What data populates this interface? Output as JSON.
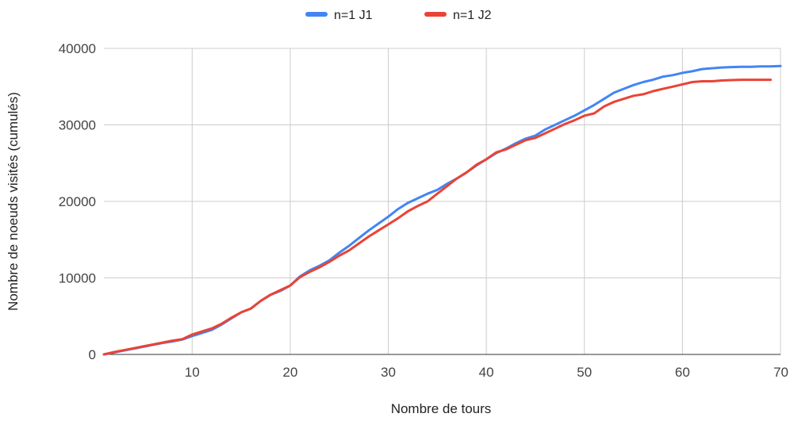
{
  "chart_data": {
    "type": "line",
    "title": "",
    "xlabel": "Nombre de tours",
    "ylabel": "Nombre de noeuds visités (cumulés)",
    "xlim": [
      1,
      70
    ],
    "ylim": [
      0,
      40000
    ],
    "x_ticks": [
      10,
      20,
      30,
      40,
      50,
      60,
      70
    ],
    "y_ticks": [
      0,
      10000,
      20000,
      30000,
      40000
    ],
    "x_tick_labels": [
      "10",
      "20",
      "30",
      "40",
      "50",
      "60",
      "70"
    ],
    "y_tick_labels": [
      "0",
      "10000",
      "20000",
      "30000",
      "40000"
    ],
    "grid": true,
    "legend_position": "top",
    "series": [
      {
        "name": "n=1 J1",
        "color": "#4285f4",
        "x": [
          1,
          2,
          3,
          4,
          5,
          6,
          7,
          8,
          9,
          10,
          11,
          12,
          13,
          14,
          15,
          16,
          17,
          18,
          19,
          20,
          21,
          22,
          23,
          24,
          25,
          26,
          27,
          28,
          29,
          30,
          31,
          32,
          33,
          34,
          35,
          36,
          37,
          38,
          39,
          40,
          41,
          42,
          43,
          44,
          45,
          46,
          47,
          48,
          49,
          50,
          51,
          52,
          53,
          54,
          55,
          56,
          57,
          58,
          59,
          60,
          61,
          62,
          63,
          64,
          65,
          66,
          67,
          68,
          69,
          70
        ],
        "values": [
          0,
          250,
          500,
          750,
          1000,
          1250,
          1500,
          1700,
          1950,
          2400,
          2800,
          3200,
          3900,
          4700,
          5500,
          6000,
          7000,
          7800,
          8300,
          9000,
          10200,
          11000,
          11600,
          12300,
          13300,
          14200,
          15200,
          16200,
          17100,
          18000,
          19000,
          19800,
          20400,
          21000,
          21500,
          22300,
          23000,
          23800,
          24700,
          25500,
          26300,
          26900,
          27600,
          28200,
          28600,
          29400,
          30000,
          30600,
          31200,
          31900,
          32600,
          33400,
          34200,
          34700,
          35200,
          35600,
          35900,
          36300,
          36500,
          36800,
          37000,
          37300,
          37400,
          37500,
          37550,
          37600,
          37600,
          37650,
          37650,
          37700
        ]
      },
      {
        "name": "n=1 J2",
        "color": "#ea4335",
        "x": [
          1,
          2,
          3,
          4,
          5,
          6,
          7,
          8,
          9,
          10,
          11,
          12,
          13,
          14,
          15,
          16,
          17,
          18,
          19,
          20,
          21,
          22,
          23,
          24,
          25,
          26,
          27,
          28,
          29,
          30,
          31,
          32,
          33,
          34,
          35,
          36,
          37,
          38,
          39,
          40,
          41,
          42,
          43,
          44,
          45,
          46,
          47,
          48,
          49,
          50,
          51,
          52,
          53,
          54,
          55,
          56,
          57,
          58,
          59,
          60,
          61,
          62,
          63,
          64,
          65,
          66,
          67,
          68,
          69
        ],
        "values": [
          0,
          300,
          550,
          800,
          1050,
          1300,
          1550,
          1800,
          2000,
          2600,
          3000,
          3400,
          4000,
          4800,
          5500,
          6000,
          7000,
          7800,
          8400,
          9000,
          10100,
          10800,
          11400,
          12100,
          12900,
          13600,
          14500,
          15400,
          16200,
          17000,
          17800,
          18700,
          19400,
          20000,
          21000,
          22000,
          23000,
          23800,
          24800,
          25500,
          26400,
          26800,
          27400,
          28000,
          28300,
          28900,
          29500,
          30100,
          30600,
          31200,
          31500,
          32400,
          33000,
          33400,
          33800,
          34000,
          34400,
          34700,
          35000,
          35300,
          35600,
          35700,
          35700,
          35800,
          35850,
          35900,
          35900,
          35900,
          35900
        ]
      }
    ]
  }
}
